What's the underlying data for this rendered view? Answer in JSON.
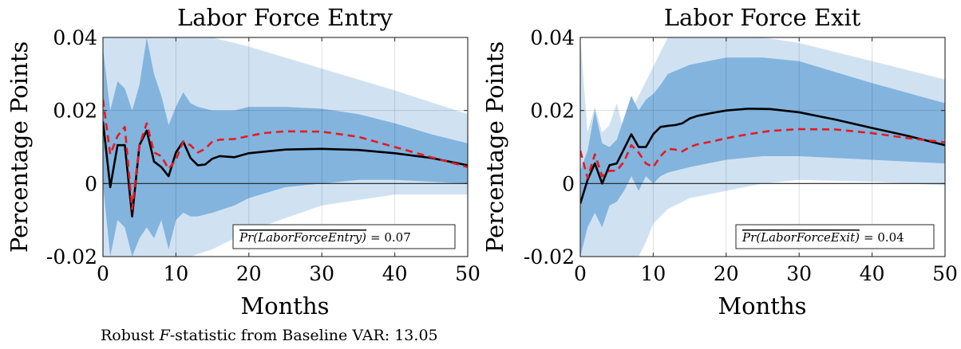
{
  "footnote": {
    "prefix": "Robust ",
    "italic": "F",
    "suffix": "-statistic from Baseline VAR: 13.05"
  },
  "style": {
    "inner_band_color": "#82b4de",
    "outer_band_color": "#d0e2f2",
    "solid_line_color": "#000000",
    "dashed_line_color": "#e8191e"
  },
  "chart_data": [
    {
      "type": "line",
      "title": "Labor Force Entry",
      "xlabel": "Months",
      "ylabel": "Percentage Points",
      "xlim": [
        0,
        50
      ],
      "ylim": [
        -0.02,
        0.04
      ],
      "xticks": [
        0,
        10,
        20,
        30,
        40,
        50
      ],
      "xtick_labels": [
        "0",
        "10",
        "20",
        "30",
        "40",
        "50"
      ],
      "yticks": [
        -0.02,
        0,
        0.02,
        0.04
      ],
      "ytick_labels": [
        "-0.02",
        "0",
        "0.02",
        "0.04"
      ],
      "grid": true,
      "annotation": {
        "text": "Pr(LaborForceEntry)",
        "value_text": "= 0.07"
      },
      "x": [
        0,
        1,
        2,
        3,
        4,
        5,
        6,
        7,
        8,
        9,
        10,
        11,
        12,
        13,
        14,
        15,
        16,
        18,
        20,
        22,
        25,
        30,
        35,
        40,
        45,
        50
      ],
      "series": [
        {
          "role": "solid",
          "values": [
            0.017,
            -0.001,
            0.0105,
            0.0105,
            -0.009,
            0.0105,
            0.0145,
            0.006,
            0.0045,
            0.002,
            0.0085,
            0.0115,
            0.007,
            0.005,
            0.0052,
            0.0068,
            0.0075,
            0.0072,
            0.0083,
            0.0087,
            0.0093,
            0.0095,
            0.0092,
            0.0083,
            0.007,
            0.005
          ]
        },
        {
          "role": "dashed",
          "values": [
            0.023,
            0.008,
            0.013,
            0.0155,
            -0.007,
            0.0105,
            0.0165,
            0.0085,
            0.0075,
            0.004,
            0.0065,
            0.0115,
            0.0105,
            0.0085,
            0.0095,
            0.0115,
            0.012,
            0.0122,
            0.013,
            0.0138,
            0.0143,
            0.0142,
            0.0128,
            0.01,
            0.0072,
            0.0045
          ]
        }
      ],
      "bands": [
        {
          "role": "outer",
          "x": [
            0,
            1,
            2,
            3,
            4,
            5,
            6,
            7,
            8,
            9,
            10,
            12,
            15,
            20,
            30,
            40,
            50
          ],
          "upper": [
            0.04,
            0.04,
            0.04,
            0.04,
            0.04,
            0.04,
            0.04,
            0.04,
            0.04,
            0.04,
            0.04,
            0.04,
            0.04,
            0.0375,
            0.0315,
            0.0255,
            0.019
          ],
          "lower": [
            -0.02,
            -0.02,
            -0.02,
            -0.02,
            -0.02,
            -0.02,
            -0.02,
            -0.02,
            -0.02,
            -0.02,
            -0.02,
            -0.02,
            -0.018,
            -0.013,
            -0.006,
            -0.003,
            -0.003
          ]
        },
        {
          "role": "inner",
          "x": [
            0,
            1,
            2,
            3,
            4,
            5,
            6,
            7,
            8,
            9,
            10,
            11,
            12,
            13,
            15,
            18,
            20,
            25,
            30,
            35,
            40,
            45,
            50
          ],
          "upper": [
            0.037,
            0.02,
            0.028,
            0.026,
            0.02,
            0.027,
            0.04,
            0.03,
            0.024,
            0.016,
            0.021,
            0.025,
            0.022,
            0.021,
            0.02,
            0.02,
            0.021,
            0.021,
            0.0205,
            0.019,
            0.0165,
            0.0135,
            0.011
          ],
          "lower": [
            0.0,
            -0.02,
            -0.01,
            -0.012,
            -0.02,
            -0.015,
            -0.012,
            -0.015,
            -0.01,
            -0.018,
            -0.01,
            -0.008,
            -0.009,
            -0.009,
            -0.008,
            -0.006,
            -0.004,
            -0.001,
            0.0,
            0.001,
            0.001,
            0.0005,
            0.0
          ]
        }
      ]
    },
    {
      "type": "line",
      "title": "Labor Force Exit",
      "xlabel": "Months",
      "ylabel": "Percentage Points",
      "xlim": [
        0,
        50
      ],
      "ylim": [
        -0.02,
        0.04
      ],
      "xticks": [
        0,
        10,
        20,
        30,
        40,
        50
      ],
      "xtick_labels": [
        "0",
        "10",
        "20",
        "30",
        "40",
        "50"
      ],
      "yticks": [
        -0.02,
        0,
        0.02,
        0.04
      ],
      "ytick_labels": [
        "-0.02",
        "0",
        "0.02",
        "0.04"
      ],
      "grid": true,
      "annotation": {
        "text": "Pr(LaborForceExit)",
        "value_text": "= 0.04"
      },
      "x": [
        0,
        1,
        2,
        3,
        4,
        5,
        6,
        7,
        8,
        9,
        10,
        11,
        12,
        13,
        14,
        15,
        16,
        18,
        20,
        23,
        26,
        30,
        35,
        40,
        45,
        50
      ],
      "series": [
        {
          "role": "solid",
          "values": [
            -0.0055,
            0.001,
            0.0055,
            0.0,
            0.005,
            0.0055,
            0.0095,
            0.0135,
            0.01,
            0.01,
            0.0135,
            0.0155,
            0.0158,
            0.016,
            0.0165,
            0.0178,
            0.0185,
            0.0193,
            0.02,
            0.0205,
            0.0204,
            0.0195,
            0.0175,
            0.0152,
            0.013,
            0.0105
          ]
        },
        {
          "role": "dashed",
          "values": [
            0.009,
            0.0015,
            0.008,
            0.002,
            0.0035,
            0.0035,
            0.006,
            0.0105,
            0.0085,
            0.0055,
            0.0045,
            0.0075,
            0.0095,
            0.0093,
            0.0088,
            0.01,
            0.0107,
            0.0115,
            0.0124,
            0.0135,
            0.0144,
            0.0149,
            0.0148,
            0.0138,
            0.0124,
            0.0113
          ]
        }
      ],
      "bands": [
        {
          "role": "outer",
          "x": [
            0,
            1,
            2,
            3,
            4,
            5,
            6,
            7,
            8,
            9,
            10,
            11,
            12,
            15,
            20,
            25,
            30,
            40,
            50
          ],
          "upper": [
            0.04,
            0.014,
            0.021,
            0.014,
            0.016,
            0.022,
            0.014,
            0.02,
            0.024,
            0.028,
            0.032,
            0.036,
            0.04,
            0.04,
            0.04,
            0.04,
            0.0385,
            0.0335,
            0.0285
          ],
          "lower": [
            -0.02,
            -0.02,
            -0.02,
            -0.02,
            -0.02,
            -0.02,
            -0.02,
            -0.02,
            -0.02,
            -0.016,
            -0.011,
            -0.009,
            -0.007,
            -0.004,
            -0.002,
            0.0,
            0.001,
            0.0005,
            -0.0005
          ]
        },
        {
          "role": "inner",
          "x": [
            0,
            1,
            2,
            3,
            4,
            5,
            6,
            7,
            8,
            9,
            10,
            11,
            12,
            15,
            20,
            25,
            30,
            40,
            50
          ],
          "upper": [
            0.0035,
            0.009,
            0.02,
            0.011,
            0.01,
            0.012,
            0.018,
            0.024,
            0.02,
            0.023,
            0.0245,
            0.027,
            0.03,
            0.0325,
            0.0345,
            0.0345,
            0.0335,
            0.0275,
            0.022
          ],
          "lower": [
            -0.02,
            -0.012,
            -0.008,
            -0.012,
            -0.006,
            -0.005,
            -0.002,
            0.002,
            -0.002,
            0.002,
            0.0,
            0.002,
            0.003,
            0.0045,
            0.0065,
            0.0075,
            0.0075,
            0.0065,
            0.0055
          ]
        }
      ]
    }
  ]
}
